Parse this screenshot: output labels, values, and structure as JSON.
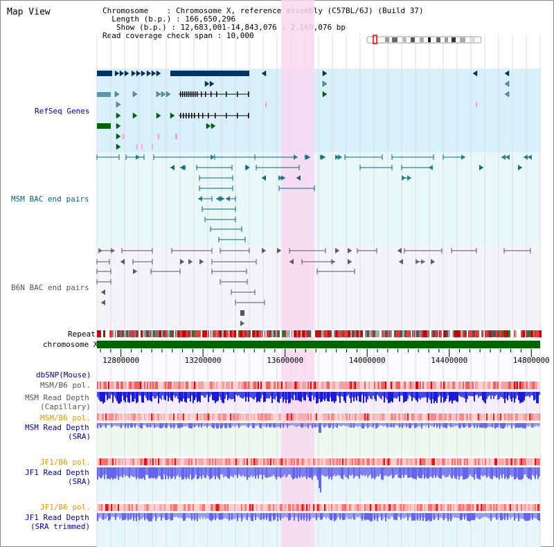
{
  "view": {
    "title": "Map View",
    "info": {
      "chromosome_key": "Chromosome",
      "chromosome_val": "Chromosome X, reference assembly (C57BL/6J) (Build 37)",
      "length_key": "Length (b.p.)",
      "length_val": "166,650,296",
      "show_key": "Show (b.p.)",
      "show_val": "12,683,001-14,843,076 : 2,160,076 bp",
      "coverage_key": "Read coverage check span",
      "coverage_val": "10,000"
    }
  },
  "tracks": {
    "refseq": {
      "label": "RefSeq Genes",
      "color": "#0000aa",
      "bg": "#d8f0fa"
    },
    "msm_bac": {
      "label": "MSM BAC end pairs",
      "color": "#006677",
      "bg": "#e8f8f8"
    },
    "b6n_bac": {
      "label": "B6N BAC end pairs",
      "color": "#555555",
      "bg": "#f4f4f8"
    },
    "repeat": {
      "label": "Repeat"
    },
    "chromosome": {
      "label": "chromosome X",
      "color": "#006600"
    },
    "dbsnp": {
      "label": "dbSNP(Mouse)",
      "color": "#0000aa"
    },
    "msm_b6_pol_1": {
      "label": "MSM/B6 pol.",
      "color": "#555555"
    },
    "msm_depth_cap": {
      "label": "MSM Read Depth",
      "label2": "(Capillary)",
      "color": "#555555"
    },
    "msm_b6_pol_2": {
      "label": "MSM/B6 pol.",
      "color": "#e69900"
    },
    "msm_depth_sra": {
      "label": "MSM Read Depth",
      "label2": "(SRA)",
      "color": "#0000aa"
    },
    "jf1_b6_pol_1": {
      "label": "JF1/B6 pol.",
      "color": "#e69900"
    },
    "jf1_depth_sra": {
      "label": "JF1 Read Depth",
      "label2": "(SRA)",
      "color": "#0000aa"
    },
    "jf1_b6_pol_2": {
      "label": "JF1/B6 pol.",
      "color": "#e69900"
    },
    "jf1_depth_trim": {
      "label": "JF1 Read Depth",
      "label2": "(SRA trimmed)",
      "color": "#0000aa"
    }
  },
  "axis": {
    "ticks": [
      12800000,
      13200000,
      13600000,
      14000000,
      14400000,
      14800000
    ],
    "tick_labels": [
      "12800000",
      "13200000",
      "13600000",
      "14000000",
      "14400000",
      "14800000"
    ],
    "range": [
      12683001,
      14843076
    ]
  },
  "highlight": {
    "start": 13582000,
    "end": 13742000,
    "color": "#f8d8f0"
  },
  "colors": {
    "navy": "#003366",
    "teal": "#5599aa",
    "green": "#006600",
    "pink": "#ff99cc",
    "bac_teal": "#006677",
    "bac_gray": "#555555",
    "blue": "#0000cc",
    "lavender": "#8888ee"
  }
}
